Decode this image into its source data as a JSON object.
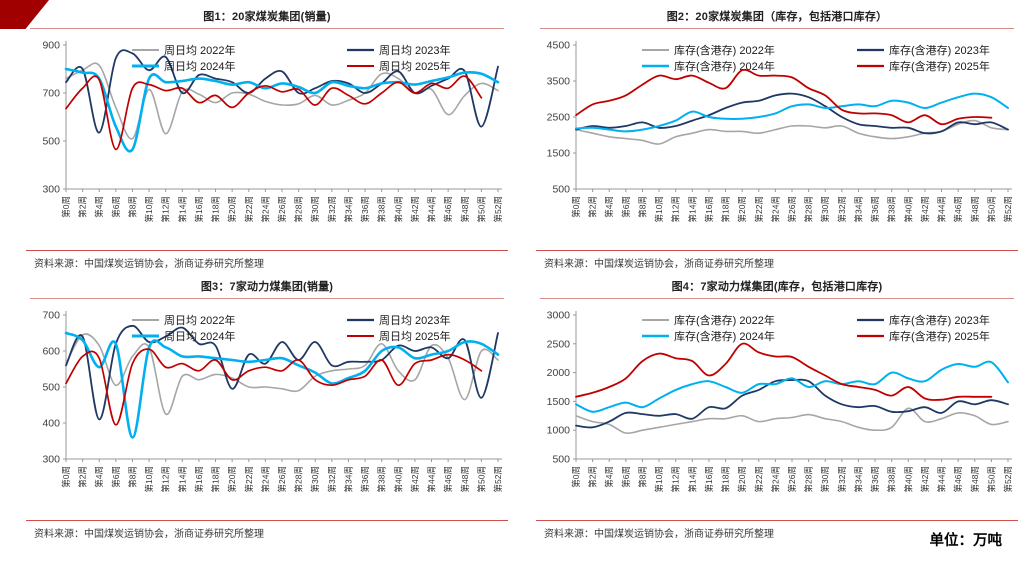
{
  "page": {
    "unit_label": "单位：万吨"
  },
  "source_note": "资料来源：中国煤炭运销协会，浙商证券研究所整理",
  "colors": {
    "banner": "#a00000",
    "axis": "#999999",
    "title_rule": "#d98c8c",
    "source_rule": "#cf4f4c"
  },
  "x_labels": [
    "第0周",
    "第2周",
    "第4周",
    "第6周",
    "第8周",
    "第10周",
    "第12周",
    "第14周",
    "第16周",
    "第18周",
    "第20周",
    "第22周",
    "第24周",
    "第26周",
    "第28周",
    "第30周",
    "第32周",
    "第34周",
    "第36周",
    "第38周",
    "第40周",
    "第42周",
    "第44周",
    "第46周",
    "第48周",
    "第50周",
    "第52周"
  ],
  "chart_data": [
    {
      "type": "line",
      "title": "图1：20家煤炭集团(销量)",
      "ylabel": "万吨",
      "xlabel": "周",
      "ylim": [
        300,
        900
      ],
      "yticks": [
        300,
        500,
        700,
        900
      ],
      "x_week_step": 2,
      "legend_position": "top",
      "grid": false,
      "series": [
        {
          "name": "周日均 2022年",
          "color": "#a6a6a6",
          "width": 1.6,
          "values": [
            760,
            795,
            815,
            640,
            510,
            715,
            530,
            705,
            695,
            660,
            700,
            695,
            665,
            650,
            655,
            690,
            650,
            670,
            700,
            780,
            760,
            700,
            715,
            610,
            690,
            740,
            710
          ]
        },
        {
          "name": "周日均 2023年",
          "color": "#1f3864",
          "width": 1.8,
          "values": [
            745,
            800,
            535,
            845,
            865,
            795,
            850,
            700,
            775,
            760,
            745,
            700,
            760,
            790,
            700,
            720,
            750,
            740,
            700,
            740,
            790,
            700,
            730,
            760,
            790,
            560,
            810
          ]
        },
        {
          "name": "周日均 2024年",
          "color": "#00b0f0",
          "width": 2.6,
          "values": [
            800,
            785,
            760,
            560,
            465,
            760,
            745,
            750,
            760,
            750,
            735,
            745,
            720,
            740,
            725,
            700,
            745,
            730,
            720,
            740,
            745,
            735,
            750,
            765,
            785,
            780,
            745
          ]
        },
        {
          "name": "周日均 2025年",
          "color": "#c00000",
          "width": 1.7,
          "values": [
            635,
            720,
            755,
            465,
            720,
            735,
            710,
            720,
            660,
            690,
            640,
            700,
            730,
            705,
            715,
            650,
            720,
            690,
            655,
            700,
            745,
            700,
            740,
            720,
            770,
            680,
            null
          ]
        }
      ]
    },
    {
      "type": "line",
      "title": "图2：20家煤炭集团（库存，包括港口库存）",
      "ylabel": "万吨",
      "xlabel": "周",
      "ylim": [
        500,
        4500
      ],
      "yticks": [
        500,
        1500,
        2500,
        3500,
        4500
      ],
      "x_week_step": 2,
      "legend_position": "top",
      "grid": false,
      "series": [
        {
          "name": "库存(含港存) 2022年",
          "color": "#a6a6a6",
          "width": 1.6,
          "values": [
            2150,
            2050,
            1950,
            1900,
            1850,
            1750,
            1950,
            2050,
            2150,
            2100,
            2100,
            2050,
            2150,
            2250,
            2250,
            2200,
            2250,
            2050,
            1950,
            1900,
            1950,
            2050,
            2100,
            2300,
            2400,
            2200,
            2150
          ]
        },
        {
          "name": "库存(含港存) 2023年",
          "color": "#1f3864",
          "width": 1.8,
          "values": [
            2150,
            2250,
            2200,
            2250,
            2350,
            2200,
            2250,
            2400,
            2550,
            2750,
            2900,
            2950,
            3100,
            3150,
            3050,
            2800,
            2500,
            2300,
            2250,
            2200,
            2200,
            2050,
            2100,
            2350,
            2300,
            2350,
            2150
          ]
        },
        {
          "name": "库存(含港存) 2024年",
          "color": "#00b0f0",
          "width": 2.0,
          "values": [
            2180,
            2200,
            2150,
            2100,
            2150,
            2250,
            2400,
            2650,
            2500,
            2450,
            2450,
            2500,
            2600,
            2800,
            2850,
            2750,
            2800,
            2850,
            2800,
            2950,
            2900,
            2750,
            2900,
            3050,
            3150,
            3050,
            2750
          ]
        },
        {
          "name": "库存(含港存) 2025年",
          "color": "#c00000",
          "width": 1.8,
          "values": [
            2550,
            2850,
            2950,
            3100,
            3400,
            3650,
            3550,
            3650,
            3450,
            3300,
            3800,
            3650,
            3650,
            3600,
            3300,
            3100,
            2700,
            2600,
            2600,
            2550,
            2350,
            2550,
            2300,
            2450,
            2500,
            2480,
            null
          ]
        }
      ]
    },
    {
      "type": "line",
      "title": "图3：7家动力煤集团(销量)",
      "ylabel": "万吨",
      "xlabel": "周",
      "ylim": [
        300,
        700
      ],
      "yticks": [
        300,
        400,
        500,
        600,
        700
      ],
      "x_week_step": 2,
      "legend_position": "top",
      "grid": false,
      "series": [
        {
          "name": "周日均 2022年",
          "color": "#a6a6a6",
          "width": 1.6,
          "values": [
            565,
            645,
            615,
            505,
            585,
            610,
            425,
            530,
            520,
            535,
            525,
            500,
            500,
            495,
            490,
            530,
            545,
            550,
            560,
            620,
            545,
            520,
            615,
            580,
            465,
            600,
            575
          ]
        },
        {
          "name": "周日均 2023年",
          "color": "#1f3864",
          "width": 1.8,
          "values": [
            560,
            640,
            410,
            620,
            670,
            625,
            640,
            665,
            620,
            615,
            495,
            590,
            565,
            625,
            575,
            625,
            560,
            570,
            570,
            575,
            615,
            600,
            610,
            580,
            630,
            470,
            650
          ]
        },
        {
          "name": "周日均 2024年",
          "color": "#00b0f0",
          "width": 2.6,
          "values": [
            650,
            630,
            555,
            620,
            360,
            610,
            610,
            585,
            585,
            580,
            575,
            570,
            575,
            580,
            560,
            540,
            510,
            525,
            545,
            600,
            610,
            580,
            590,
            600,
            625,
            620,
            590
          ]
        },
        {
          "name": "周日均 2025年",
          "color": "#c00000",
          "width": 1.7,
          "values": [
            510,
            585,
            580,
            395,
            565,
            605,
            555,
            565,
            545,
            575,
            520,
            545,
            555,
            545,
            575,
            520,
            505,
            520,
            530,
            575,
            505,
            565,
            575,
            590,
            575,
            545,
            null
          ]
        }
      ]
    },
    {
      "type": "line",
      "title": "图4：7家动力煤集团(库存，包括港口库存)",
      "ylabel": "万吨",
      "xlabel": "周",
      "ylim": [
        500,
        3000
      ],
      "yticks": [
        500,
        1000,
        1500,
        2000,
        2500,
        3000
      ],
      "x_week_step": 2,
      "legend_position": "top",
      "grid": false,
      "series": [
        {
          "name": "库存(含港存) 2022年",
          "color": "#a6a6a6",
          "width": 1.6,
          "values": [
            1250,
            1150,
            1100,
            950,
            1000,
            1050,
            1100,
            1150,
            1200,
            1200,
            1250,
            1150,
            1200,
            1220,
            1270,
            1200,
            1150,
            1050,
            1000,
            1050,
            1380,
            1150,
            1200,
            1300,
            1250,
            1100,
            1150
          ]
        },
        {
          "name": "库存(含港存) 2023年",
          "color": "#1f3864",
          "width": 1.8,
          "values": [
            1080,
            1050,
            1150,
            1300,
            1280,
            1250,
            1280,
            1200,
            1400,
            1380,
            1600,
            1700,
            1850,
            1870,
            1850,
            1600,
            1450,
            1400,
            1420,
            1320,
            1330,
            1400,
            1300,
            1500,
            1450,
            1520,
            1450
          ]
        },
        {
          "name": "库存(含港存) 2024年",
          "color": "#00b0f0",
          "width": 2.0,
          "values": [
            1450,
            1320,
            1400,
            1480,
            1400,
            1550,
            1700,
            1800,
            1850,
            1750,
            1650,
            1800,
            1800,
            1900,
            1750,
            1850,
            1800,
            1850,
            1800,
            2000,
            1900,
            1850,
            2050,
            2150,
            2100,
            2180,
            1830
          ]
        },
        {
          "name": "库存(含港存) 2025年",
          "color": "#c00000",
          "width": 1.8,
          "values": [
            1580,
            1650,
            1750,
            1900,
            2200,
            2330,
            2250,
            2200,
            1950,
            2150,
            2500,
            2350,
            2280,
            2270,
            2100,
            1950,
            1800,
            1750,
            1700,
            1600,
            1750,
            1550,
            1530,
            1580,
            1580,
            1580,
            null
          ]
        }
      ]
    }
  ]
}
